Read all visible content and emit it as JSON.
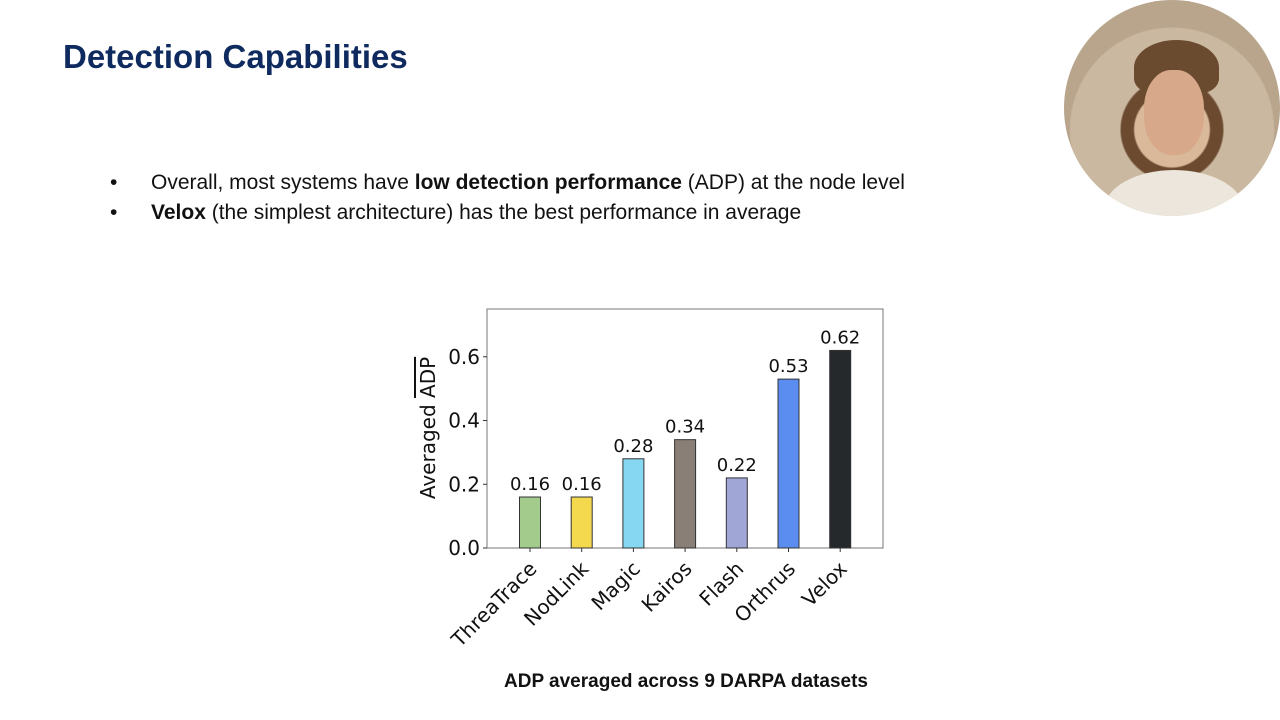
{
  "slide": {
    "title": "Detection Capabilities",
    "bullets": [
      {
        "marker": "•",
        "parts": [
          {
            "text": "Overall, most systems have ",
            "bold": false
          },
          {
            "text": "low detection performance",
            "bold": true
          },
          {
            "text": " (ADP) at the node level",
            "bold": false
          }
        ]
      },
      {
        "marker": "•",
        "parts": [
          {
            "text": "Velox",
            "bold": true
          },
          {
            "text": " (the simplest architecture) has the best performance in average",
            "bold": false
          }
        ]
      }
    ],
    "caption": "ADP averaged across 9 DARPA datasets"
  },
  "chart_data": {
    "type": "bar",
    "categories": [
      "ThreaTrace",
      "NodLink",
      "Magic",
      "Kairos",
      "Flash",
      "Orthrus",
      "Velox"
    ],
    "values": [
      0.16,
      0.16,
      0.28,
      0.34,
      0.22,
      0.53,
      0.62
    ],
    "data_labels": [
      "0.16",
      "0.16",
      "0.28",
      "0.34",
      "0.22",
      "0.53",
      "0.62"
    ],
    "colors": [
      "#a2cb8c",
      "#f4d84e",
      "#86d8f2",
      "#8a7f76",
      "#a0a6d6",
      "#5b8cf0",
      "#26292c"
    ],
    "ylabel": "Averaged ADP",
    "ylabel_overline": "ADP",
    "xlabel": "",
    "ylim": [
      0,
      0.75
    ],
    "yticks": [
      "0.0",
      "0.2",
      "0.4",
      "0.6"
    ],
    "grid": false,
    "legend": "none"
  },
  "webcam": {
    "shape": "circle",
    "content": "presenter-video"
  }
}
